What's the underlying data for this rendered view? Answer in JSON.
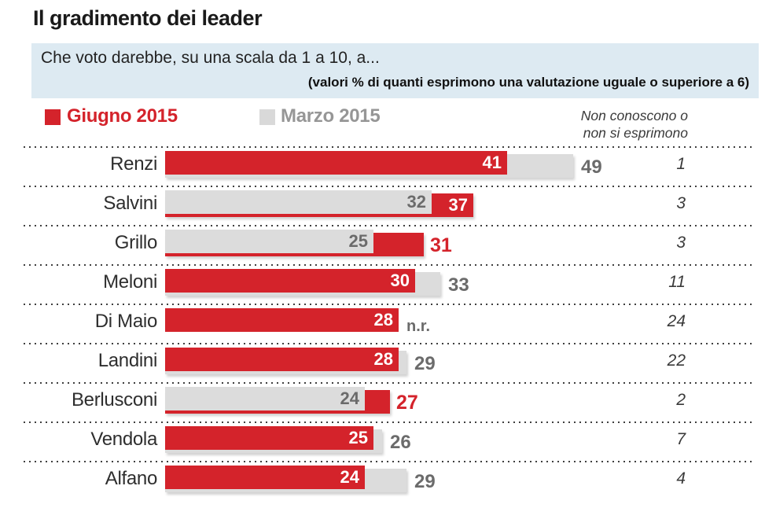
{
  "title": "Il gradimento dei leader",
  "header": {
    "question": "Che voto darebbe, su una scala da 1 a 10, a...",
    "note": "(valori % di quanti esprimono una valutazione uguale o superiore a 6)"
  },
  "legend": {
    "june_label": "Giugno 2015",
    "march_label": "Marzo 2015",
    "nc_note_line1": "Non conoscono o",
    "nc_note_line2": "non si esprimono"
  },
  "colors": {
    "june": "#d4232b",
    "march": "#dcdcdc",
    "march_text": "#6b6b6b",
    "header_bg": "#ddeaf2"
  },
  "chart_data": {
    "type": "bar",
    "orientation": "horizontal",
    "unit": "percent",
    "title": "Il gradimento dei leader",
    "categories": [
      "Renzi",
      "Salvini",
      "Grillo",
      "Meloni",
      "Di Maio",
      "Landini",
      "Berlusconi",
      "Vendola",
      "Alfano"
    ],
    "series": [
      {
        "name": "Giugno 2015",
        "color": "#d4232b",
        "values": [
          41,
          37,
          31,
          30,
          28,
          28,
          27,
          25,
          24
        ]
      },
      {
        "name": "Marzo 2015",
        "color": "#dcdcdc",
        "values": [
          49,
          32,
          25,
          33,
          null,
          29,
          24,
          26,
          29
        ]
      }
    ],
    "march_display_labels": [
      "49",
      "32",
      "25",
      "33",
      "n.r.",
      "29",
      "24",
      "26",
      "29"
    ],
    "non_conoscono_label": "Non conoscono o non si esprimono",
    "non_conoscono_values": [
      1,
      3,
      3,
      11,
      24,
      22,
      2,
      7,
      4
    ],
    "june_label_placement": [
      "inside",
      "overhang-inside",
      "outside",
      "inside",
      "inside",
      "inside",
      "outside",
      "inside",
      "inside"
    ],
    "x_max_hint": 49,
    "grid": "dotted-row-separators",
    "legend_position": "top"
  }
}
